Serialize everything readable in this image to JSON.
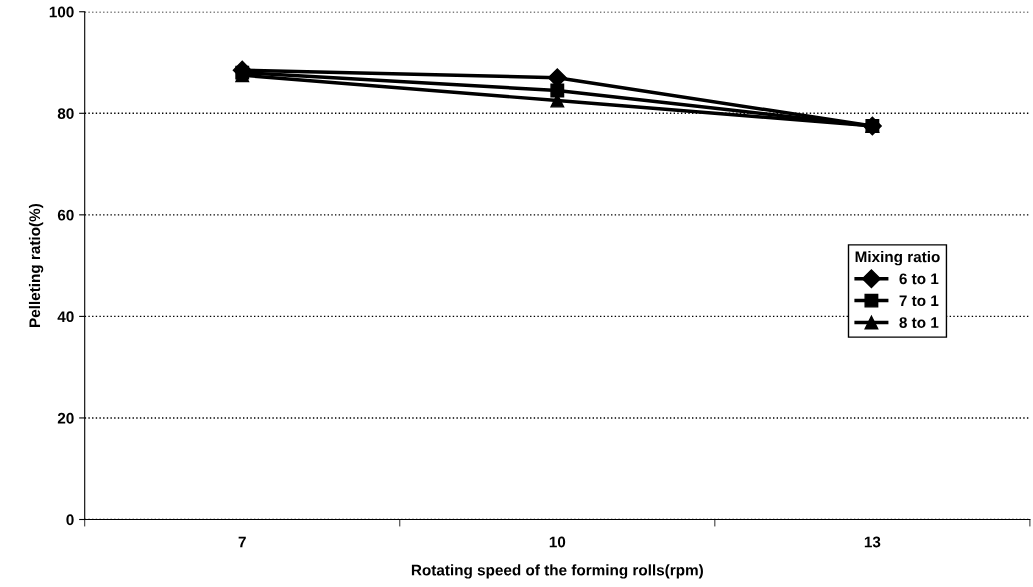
{
  "chart_data": {
    "type": "line",
    "xlabel": "Rotating speed of the forming rolls(rpm)",
    "ylabel": "Pelleting ratio(%)",
    "legend_title": "Mixing ratio",
    "categories": [
      "7",
      "10",
      "13"
    ],
    "series": [
      {
        "name": "6 to 1",
        "color": "#000000",
        "marker": "diamond",
        "values": [
          88.5,
          87,
          77.5
        ]
      },
      {
        "name": "7 to 1",
        "color": "#000000",
        "marker": "square",
        "values": [
          88,
          84.5,
          77.5
        ]
      },
      {
        "name": "8 to 1",
        "color": "#000000",
        "marker": "triangle",
        "values": [
          87.5,
          82.5,
          77.5
        ]
      }
    ],
    "ylim": [
      0,
      100
    ],
    "yticks": [
      0,
      20,
      40,
      60,
      80,
      100
    ],
    "grid": "y",
    "legend": "right",
    "line_style": "solid"
  }
}
